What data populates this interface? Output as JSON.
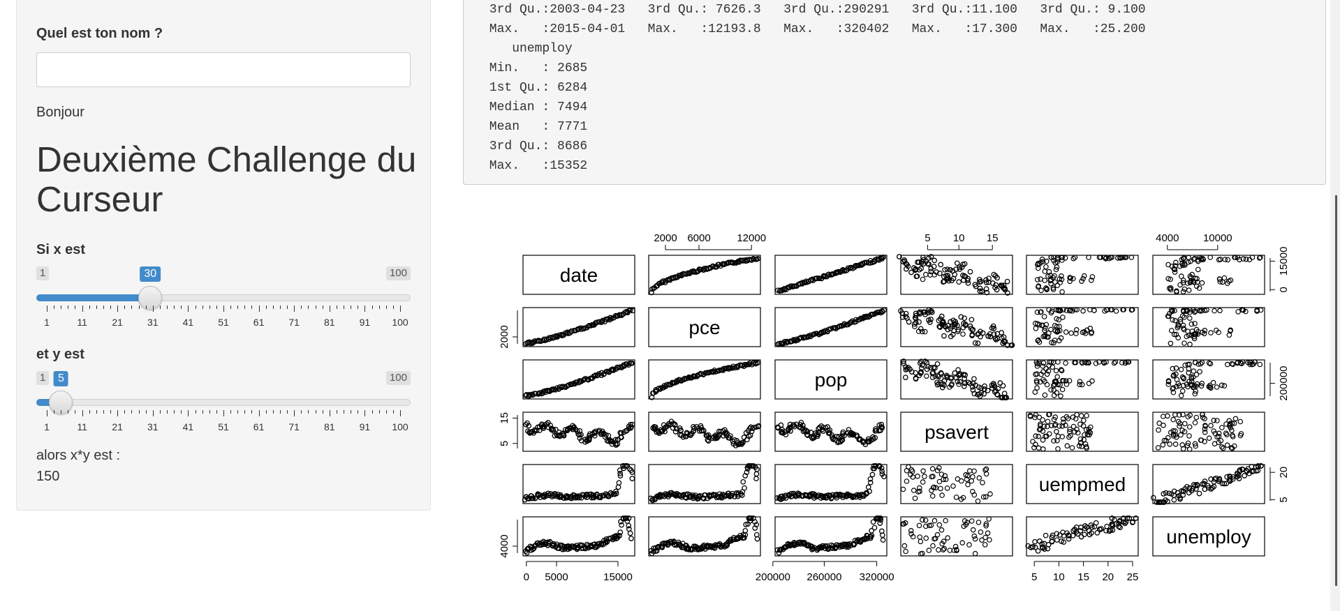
{
  "sidebar": {
    "name_label": "Quel est ton nom ?",
    "name_value": "",
    "greeting": "Bonjour",
    "title": "Deuxième Challenge du Curseur",
    "slider_x": {
      "label": "Si x est",
      "min": "1",
      "max": "100",
      "value": "30",
      "ticks": [
        "1",
        "11",
        "21",
        "31",
        "41",
        "51",
        "61",
        "71",
        "81",
        "91",
        "100"
      ]
    },
    "slider_y": {
      "label": "et y est",
      "min": "1",
      "max": "100",
      "value": "5",
      "ticks": [
        "1",
        "11",
        "21",
        "31",
        "41",
        "51",
        "61",
        "71",
        "81",
        "91",
        "100"
      ]
    },
    "result_label": "alors x*y est :",
    "result_value": "150"
  },
  "summary_output": {
    "lines": [
      " 3rd Qu.:2003-04-23   3rd Qu.: 7626.3   3rd Qu.:290291   3rd Qu.:11.100   3rd Qu.: 9.100",
      " Max.   :2015-04-01   Max.   :12193.8   Max.   :320402   Max.   :17.300   Max.   :25.200",
      "    unemploy",
      " Min.   : 2685",
      " 1st Qu.: 6284",
      " Median : 7494",
      " Mean   : 7771",
      " 3rd Qu.: 8686",
      " Max.   :15352"
    ]
  },
  "pairs_plot": {
    "variables": [
      "date",
      "pce",
      "pop",
      "psavert",
      "uempmed",
      "unemploy"
    ],
    "top_axis": {
      "pce": [
        "2000",
        "6000",
        "12000"
      ],
      "psavert": [
        "5",
        "10",
        "15"
      ],
      "unemploy": [
        "4000",
        "10000"
      ]
    },
    "bottom_axis": {
      "date": [
        "0",
        "5000",
        "15000"
      ],
      "pop": [
        "200000",
        "260000",
        "320000"
      ],
      "uempmed": [
        "5",
        "10",
        "15",
        "20",
        "25"
      ]
    },
    "left_axis": {
      "pce": [
        "2000"
      ],
      "psavert": [
        "5",
        "15"
      ],
      "unemploy": [
        "4000"
      ]
    },
    "right_axis": {
      "date": [
        "0",
        "15000"
      ],
      "pop": [
        "200000"
      ],
      "uempmed": [
        "5",
        "20"
      ]
    }
  }
}
